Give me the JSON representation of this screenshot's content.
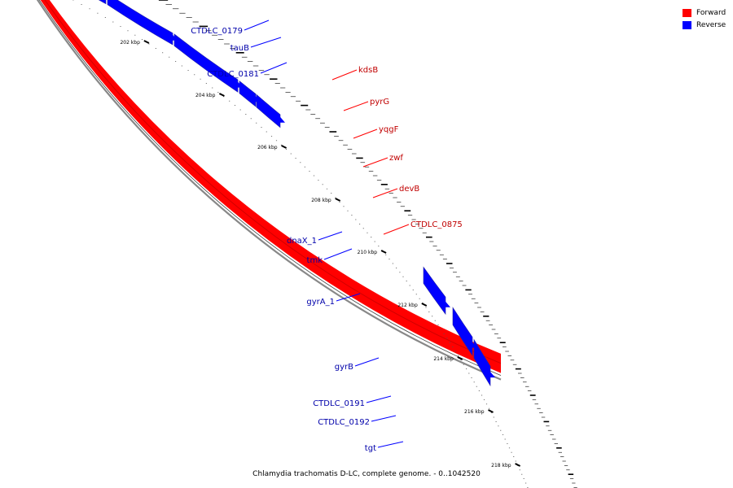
{
  "colors": {
    "forward": "#ff0000",
    "reverse": "#0000ff",
    "backbone": "#808080"
  },
  "legend": [
    {
      "label": "Forward",
      "color": "#ff0000"
    },
    {
      "label": "Reverse",
      "color": "#0000ff"
    }
  ],
  "caption": "Chlamydia trachomatis D-LC, complete genome. - 0..1042520",
  "ruler_labels": [
    "202 kbp",
    "204 kbp",
    "206 kbp",
    "208 kbp",
    "210 kbp",
    "212 kbp",
    "214 kbp",
    "216 kbp",
    "218 kbp"
  ],
  "forward_genes": [
    "kdsB",
    "pyrG",
    "yqgF",
    "zwf",
    "devB",
    "CTDLC_0875"
  ],
  "reverse_genes": [
    "CTDLC_0179",
    "tauB",
    "CTDLC_0181",
    "dnaX_1",
    "tmk",
    "gyrA_1",
    "gyrB",
    "CTDLC_0191",
    "CTDLC_0192",
    "tgt"
  ]
}
